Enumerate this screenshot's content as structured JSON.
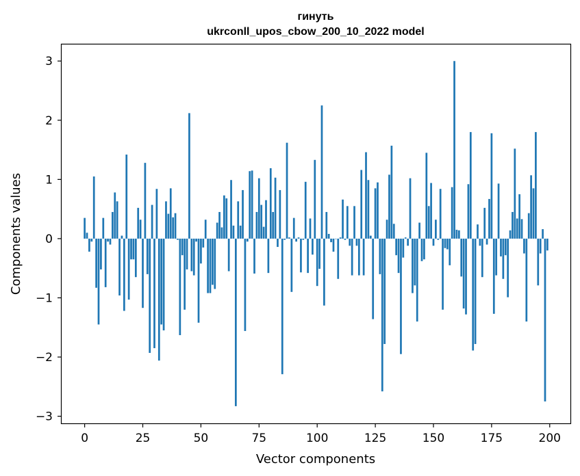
{
  "chart_data": {
    "type": "bar",
    "title": "гинуть",
    "subtitle": "ukrconll_upos_cbow_200_10_2022 model",
    "xlabel": "Vector components",
    "ylabel": "Components values",
    "xlim": [
      -9.9,
      208.9
    ],
    "ylim": [
      -3.12,
      3.28
    ],
    "xticks": [
      0,
      25,
      50,
      75,
      100,
      125,
      150,
      175,
      200
    ],
    "xtick_labels": [
      "0",
      "25",
      "50",
      "75",
      "100",
      "125",
      "150",
      "175",
      "200"
    ],
    "yticks": [
      -3,
      -2,
      -1,
      0,
      1,
      2,
      3
    ],
    "ytick_labels": [
      "−3",
      "−2",
      "−1",
      "0",
      "1",
      "2",
      "3"
    ],
    "bar_color": "#1f77b4",
    "grid": false,
    "x": [
      0,
      1,
      2,
      3,
      4,
      5,
      6,
      7,
      8,
      9,
      10,
      11,
      12,
      13,
      14,
      15,
      16,
      17,
      18,
      19,
      20,
      21,
      22,
      23,
      24,
      25,
      26,
      27,
      28,
      29,
      30,
      31,
      32,
      33,
      34,
      35,
      36,
      37,
      38,
      39,
      40,
      41,
      42,
      43,
      44,
      45,
      46,
      47,
      48,
      49,
      50,
      51,
      52,
      53,
      54,
      55,
      56,
      57,
      58,
      59,
      60,
      61,
      62,
      63,
      64,
      65,
      66,
      67,
      68,
      69,
      70,
      71,
      72,
      73,
      74,
      75,
      76,
      77,
      78,
      79,
      80,
      81,
      82,
      83,
      84,
      85,
      86,
      87,
      88,
      89,
      90,
      91,
      92,
      93,
      94,
      95,
      96,
      97,
      98,
      99,
      100,
      101,
      102,
      103,
      104,
      105,
      106,
      107,
      108,
      109,
      110,
      111,
      112,
      113,
      114,
      115,
      116,
      117,
      118,
      119,
      120,
      121,
      122,
      123,
      124,
      125,
      126,
      127,
      128,
      129,
      130,
      131,
      132,
      133,
      134,
      135,
      136,
      137,
      138,
      139,
      140,
      141,
      142,
      143,
      144,
      145,
      146,
      147,
      148,
      149,
      150,
      151,
      152,
      153,
      154,
      155,
      156,
      157,
      158,
      159,
      160,
      161,
      162,
      163,
      164,
      165,
      166,
      167,
      168,
      169,
      170,
      171,
      172,
      173,
      174,
      175,
      176,
      177,
      178,
      179,
      180,
      181,
      182,
      183,
      184,
      185,
      186,
      187,
      188,
      189,
      190,
      191,
      192,
      193,
      194,
      195,
      196,
      197,
      198,
      199
    ],
    "values": [
      0.35,
      0.1,
      -0.22,
      -0.05,
      1.05,
      -0.83,
      -1.45,
      -0.52,
      0.35,
      -0.82,
      -0.05,
      -0.1,
      0.45,
      0.78,
      0.63,
      -0.96,
      0.05,
      -1.22,
      1.42,
      -1.03,
      -0.35,
      -0.35,
      -0.65,
      0.52,
      0.32,
      -1.17,
      1.28,
      -0.6,
      -1.93,
      0.57,
      -1.85,
      0.84,
      -2.06,
      -1.45,
      -1.55,
      0.63,
      0.42,
      0.85,
      0.36,
      0.43,
      -0.02,
      -1.63,
      -0.28,
      -1.2,
      -0.52,
      2.12,
      -0.55,
      -0.62,
      -0.05,
      -1.42,
      -0.42,
      -0.15,
      0.32,
      -0.92,
      -0.92,
      -0.78,
      -0.85,
      0.27,
      0.45,
      0.19,
      0.73,
      0.68,
      -0.55,
      0.99,
      0.22,
      -2.83,
      0.63,
      0.22,
      0.82,
      -1.56,
      -0.05,
      1.14,
      1.15,
      -0.59,
      0.45,
      1.02,
      0.57,
      0.2,
      0.65,
      -0.58,
      1.19,
      0.45,
      1.03,
      -0.14,
      0.82,
      -2.29,
      -0.02,
      1.62,
      0.02,
      -0.9,
      0.35,
      -0.05,
      0.02,
      -0.57,
      -0.02,
      0.96,
      -0.58,
      0.34,
      -0.27,
      1.33,
      -0.8,
      -0.51,
      2.25,
      -1.13,
      0.45,
      0.08,
      -0.06,
      -0.22,
      0.0,
      -0.68,
      0.02,
      0.66,
      -0.02,
      0.55,
      -0.12,
      -0.62,
      0.55,
      -0.12,
      -0.62,
      1.16,
      -0.62,
      1.46,
      0.99,
      0.05,
      -1.36,
      0.85,
      0.95,
      -0.6,
      -2.58,
      -1.78,
      0.32,
      1.08,
      1.57,
      0.25,
      -0.28,
      -0.58,
      -1.95,
      -0.32,
      0.02,
      -0.12,
      1.02,
      -0.92,
      -0.79,
      -1.4,
      0.27,
      -0.38,
      -0.35,
      1.45,
      0.55,
      0.94,
      -0.12,
      0.32,
      -0.02,
      0.84,
      -1.2,
      -0.16,
      -0.18,
      -0.45,
      0.87,
      3.0,
      0.15,
      0.14,
      -0.64,
      -1.18,
      -1.28,
      0.92,
      1.8,
      -1.89,
      -1.78,
      0.24,
      -0.12,
      -0.65,
      0.52,
      -0.1,
      0.67,
      1.78,
      -1.27,
      -0.62,
      0.93,
      -0.3,
      -0.68,
      -0.28,
      -0.99,
      0.14,
      0.45,
      1.52,
      0.34,
      0.75,
      0.33,
      -0.25,
      -1.4,
      0.43,
      1.07,
      0.85,
      1.8,
      -0.79,
      -0.25,
      0.16,
      -2.75,
      -0.2
    ]
  }
}
